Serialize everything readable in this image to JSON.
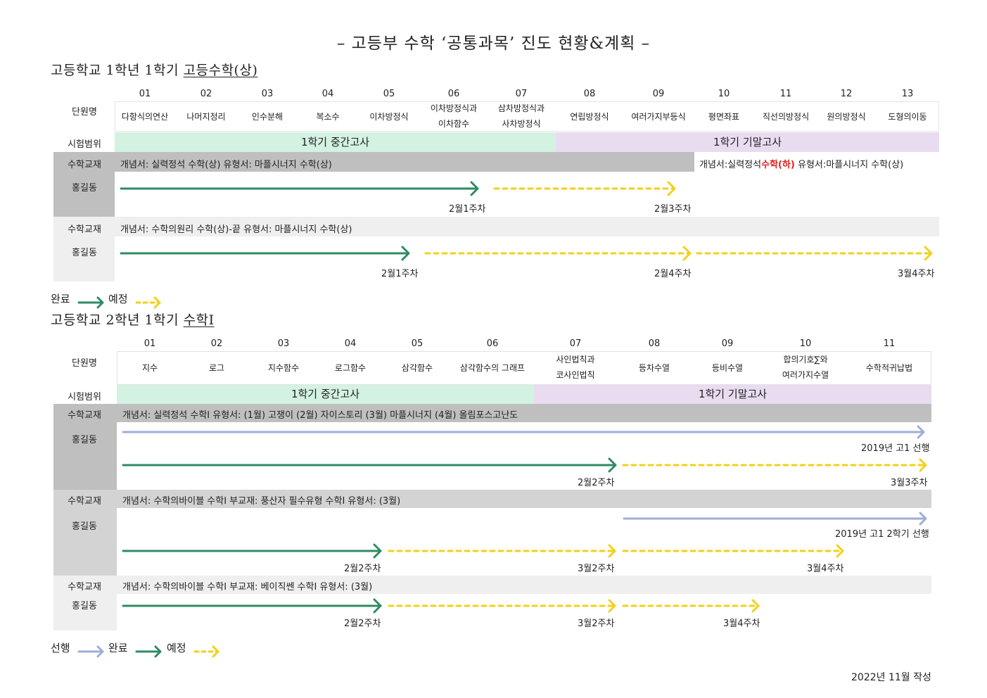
{
  "title": "– 고등부 수학 ‘공통과목’ 진도 현황&계획 –",
  "section1": {
    "heading": "고등학교 1학년 1학기 ",
    "subject": "고등수학(상)"
  },
  "section2": {
    "heading": "고등학교 2학년 1학기 ",
    "subject": "수학I"
  },
  "labels": {
    "unit": "단원명",
    "range": "시험범위",
    "book": "수학교재",
    "student": "홍길동"
  },
  "table1": {
    "numbers": [
      "01",
      "02",
      "03",
      "04",
      "05",
      "06",
      "07",
      "08",
      "09",
      "10",
      "11",
      "12",
      "13"
    ],
    "units": [
      "다항식의연산",
      "나머지정리",
      "인수분해",
      "복소수",
      "이차방정식",
      "이차방정식과\n이차함수",
      "삼차방정식과\n사차방정식",
      "연립방정식",
      "여러가지부등식",
      "평면좌표",
      "직선의방정식",
      "원의방정식",
      "도형의이동"
    ],
    "exam_mid": "1학기 중간고사",
    "exam_final": "1학기 기말고사",
    "row1_book": "개념서: 실력정석 수학(상) 유형서: 마플시너지 수학(상)",
    "row1_book_right_a": "개념서:실력정석",
    "row1_book_right_red": "수학(하)",
    "row1_book_right_b": " 유형서:마플시너지 수학(상)",
    "row1_marks": [
      "2월1주차",
      "2월3주차"
    ],
    "row2_book": "개념서: 수학의원리 수학(상)-끝  유형서: 마플시너지 수학(상)",
    "row2_marks": [
      "2월1주차",
      "2월4주차",
      "3월4주차"
    ]
  },
  "legend1": {
    "done": "완료",
    "planned": "예정"
  },
  "table2": {
    "numbers": [
      "01",
      "02",
      "03",
      "04",
      "05",
      "06",
      "07",
      "08",
      "09",
      "10",
      "11"
    ],
    "units": [
      "지수",
      "로그",
      "지수함수",
      "로그함수",
      "삼각함수",
      "삼각함수의 그래프",
      "사인법칙과\n코사인법칙",
      "등차수열",
      "등비수열",
      "합의기호∑와\n여러가지수열",
      "수학적귀납법"
    ],
    "exam_mid": "1학기 중간고사",
    "exam_final": "1학기 기말고사",
    "row1_book": "개념서: 실력정석 수학I 유형서: (1월) 고쟁이 (2월) 자이스토리 (3월) 마플시너지 (4월) 올림포스고난도",
    "row1_marks": [
      "2019년 고1 선행",
      "2월2주차",
      "3월3주차"
    ],
    "row2_book": "개념서: 수학의바이블 수학I 부교재: 풍산자 필수유형 수학I 유형서: (3월)",
    "row2_marks": [
      "2019년 고1 2학기 선행",
      "2월2주차",
      "3월2주차",
      "3월4주차"
    ],
    "row3_book": "개념서: 수학의바이블 수학I 부교재: 베이직쎈 수학I 유형서: (3월)",
    "row3_marks": [
      "2월2주차",
      "3월2주차",
      "3월4주차"
    ]
  },
  "legend2": {
    "ahead": "선행",
    "done": "완료",
    "planned": "예정"
  },
  "footer": "2022년 11월 작성",
  "colors": {
    "done": "#2e8b63",
    "planned": "#f2d11a",
    "ahead": "#9eaed6",
    "mid": "#d4f2e2",
    "final": "#e9dcf0",
    "red": "#e02020"
  }
}
